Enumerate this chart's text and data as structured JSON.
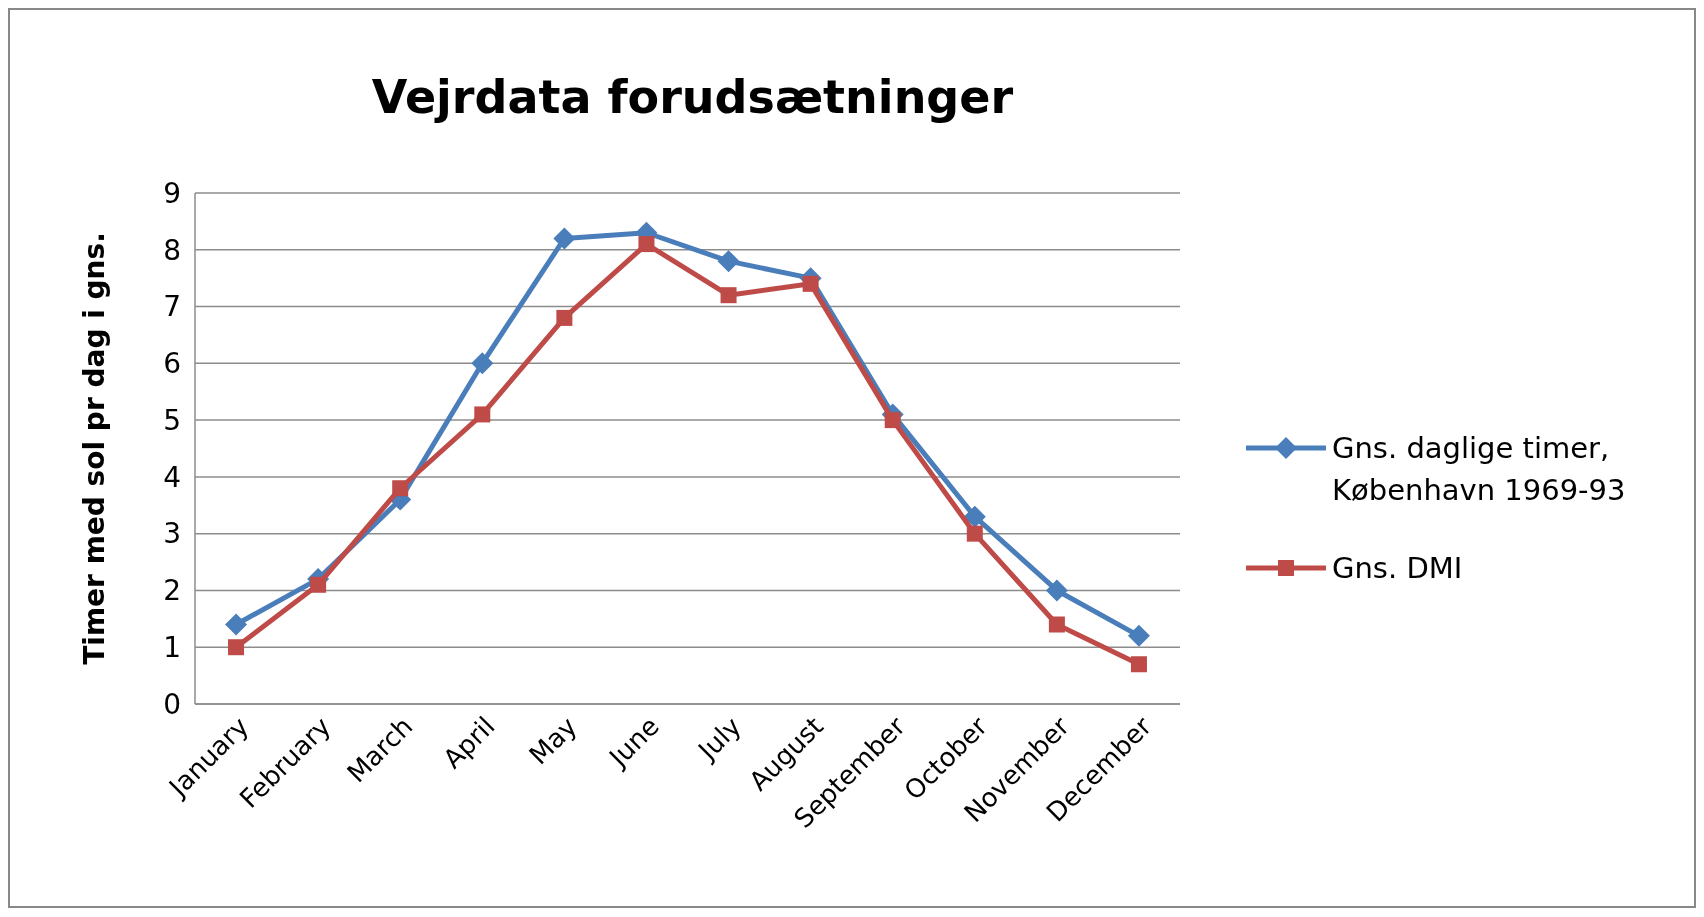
{
  "chart_data": {
    "type": "line",
    "title": "Vejrdata forudsætninger",
    "ylabel": "Timer med sol pr dag i gns.",
    "categories": [
      "January",
      "February",
      "March",
      "April",
      "May",
      "June",
      "July",
      "August",
      "September",
      "October",
      "November",
      "December"
    ],
    "series": [
      {
        "name": "Gns. daglige timer, København 1969-93",
        "color": "#4a7ebb",
        "marker": "diamond",
        "values": [
          1.4,
          2.2,
          3.6,
          6.0,
          8.2,
          8.3,
          7.8,
          7.5,
          5.1,
          3.3,
          2.0,
          1.2
        ]
      },
      {
        "name": "Gns. DMI",
        "color": "#be4b48",
        "marker": "square",
        "values": [
          1.0,
          2.1,
          3.8,
          5.1,
          6.8,
          8.1,
          7.2,
          7.4,
          5.0,
          3.0,
          1.4,
          0.7
        ]
      }
    ],
    "ylim": [
      0,
      9
    ],
    "yticks": [
      0,
      1,
      2,
      3,
      4,
      5,
      6,
      7,
      8,
      9
    ],
    "grid": "y",
    "legend": "right",
    "line_style": "solid"
  }
}
